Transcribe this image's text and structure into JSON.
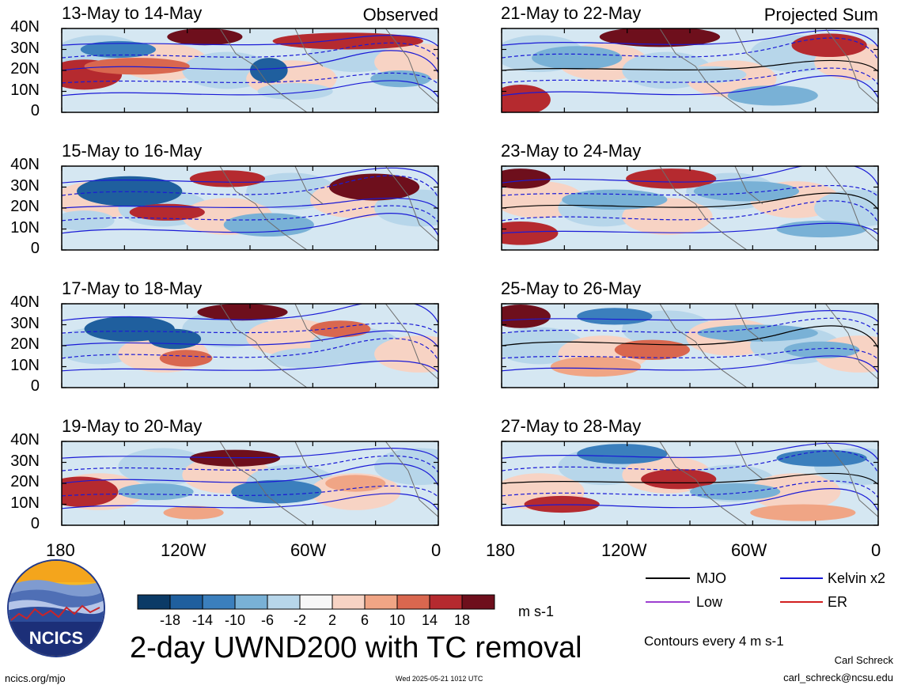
{
  "figure": {
    "title": "2-day UWND200 with TC removal",
    "contour_note": "Contours every 4 m s-1",
    "units": "m s-1",
    "left_column_tag": "Observed",
    "right_column_tag": "Projected Sum",
    "footer_url": "ncics.org/mjo",
    "timestamp": "Wed 2025-05-21 1012 UTC",
    "author_name": "Carl Schreck",
    "author_email": "carl_schreck@ncsu.edu",
    "logo_text": "NCICS"
  },
  "panels": {
    "left": [
      {
        "date_range": "13-May to 14-May"
      },
      {
        "date_range": "15-May to 16-May"
      },
      {
        "date_range": "17-May to 18-May"
      },
      {
        "date_range": "19-May to 20-May"
      }
    ],
    "right": [
      {
        "date_range": "21-May to 22-May"
      },
      {
        "date_range": "23-May to 24-May"
      },
      {
        "date_range": "25-May to 26-May"
      },
      {
        "date_range": "27-May to 28-May"
      }
    ]
  },
  "axes": {
    "lat_labels": [
      "40N",
      "30N",
      "20N",
      "10N",
      "0"
    ],
    "lon_labels": [
      "180",
      "120W",
      "60W",
      "0"
    ]
  },
  "colorbar": {
    "labels": [
      "-18",
      "-14",
      "-10",
      "-6",
      "-2",
      "2",
      "6",
      "10",
      "14",
      "18"
    ],
    "colors": [
      "#0b3a66",
      "#1f5f9e",
      "#3b7fbd",
      "#79b1d6",
      "#b7d6ea",
      "#f7f7f7",
      "#f7d3c4",
      "#f0a585",
      "#d9674f",
      "#b52a2f",
      "#6e0f1c"
    ]
  },
  "legend": {
    "items": [
      {
        "label": "MJO",
        "color": "#000000"
      },
      {
        "label": "Kelvin x2",
        "color": "#1a1ad6"
      },
      {
        "label": "Low",
        "color": "#9d3fd0"
      },
      {
        "label": "ER",
        "color": "#d21f1f"
      }
    ]
  }
}
